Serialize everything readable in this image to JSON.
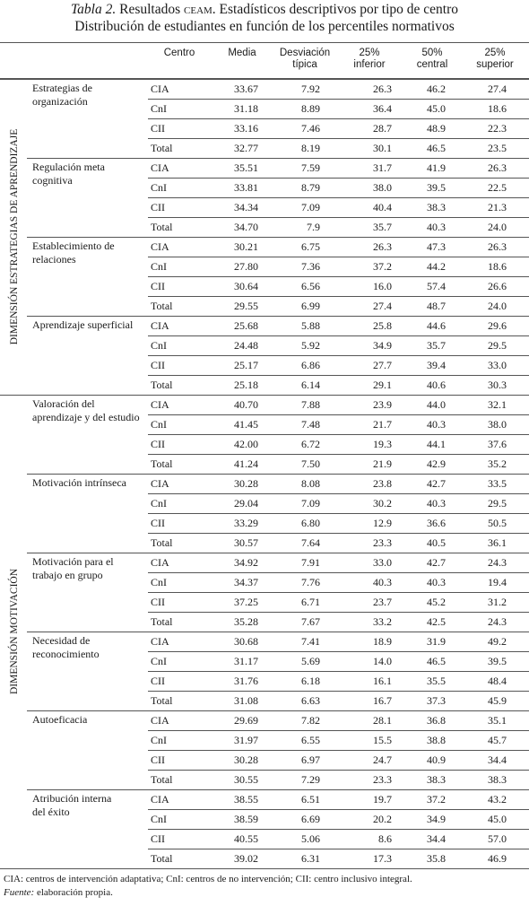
{
  "title": {
    "label": "Tabla 2.",
    "text": "Resultados",
    "acronym": "CEAM",
    "rest": ". Estadísticos descriptivos por tipo de centro",
    "subtitle": "Distribución de estudiantes en función de los percentiles normativos"
  },
  "table": {
    "header": [
      [
        "Centro"
      ],
      [
        "Media"
      ],
      [
        "Desviación",
        "típica"
      ],
      [
        "25%",
        "inferior"
      ],
      [
        "50%",
        "central"
      ],
      [
        "25%",
        "superior"
      ]
    ],
    "dimensions": [
      {
        "label": "DIMENSIÓN ESTRATEGIAS DE APRENDIZAJE",
        "groups": [
          {
            "label": [
              "Estrategias de",
              "organización"
            ],
            "rows": [
              [
                "CIA",
                "33.67",
                "7.92",
                "26.3",
                "46.2",
                "27.4"
              ],
              [
                "CnI",
                "31.18",
                "8.89",
                "36.4",
                "45.0",
                "18.6"
              ],
              [
                "CII",
                "33.16",
                "7.46",
                "28.7",
                "48.9",
                "22.3"
              ],
              [
                "Total",
                "32.77",
                "8.19",
                "30.1",
                "46.5",
                "23.5"
              ]
            ]
          },
          {
            "label": [
              "Regulación meta",
              "cognitiva"
            ],
            "rows": [
              [
                "CIA",
                "35.51",
                "7.59",
                "31.7",
                "41.9",
                "26.3"
              ],
              [
                "CnI",
                "33.81",
                "8.79",
                "38.0",
                "39.5",
                "22.5"
              ],
              [
                "CII",
                "34.34",
                "7.09",
                "40.4",
                "38.3",
                "21.3"
              ],
              [
                "Total",
                "34.70",
                "7.9",
                "35.7",
                "40.3",
                "24.0"
              ]
            ]
          },
          {
            "label": [
              "Establecimiento de",
              "relaciones"
            ],
            "rows": [
              [
                "CIA",
                "30.21",
                "6.75",
                "26.3",
                "47.3",
                "26.3"
              ],
              [
                "CnI",
                "27.80",
                "7.36",
                "37.2",
                "44.2",
                "18.6"
              ],
              [
                "CII",
                "30.64",
                "6.56",
                "16.0",
                "57.4",
                "26.6"
              ],
              [
                "Total",
                "29.55",
                "6.99",
                "27.4",
                "48.7",
                "24.0"
              ]
            ]
          },
          {
            "label": [
              "Aprendizaje superficial"
            ],
            "rows": [
              [
                "CIA",
                "25.68",
                "5.88",
                "25.8",
                "44.6",
                "29.6"
              ],
              [
                "CnI",
                "24.48",
                "5.92",
                "34.9",
                "35.7",
                "29.5"
              ],
              [
                "CII",
                "25.17",
                "6.86",
                "27.7",
                "39.4",
                "33.0"
              ],
              [
                "Total",
                "25.18",
                "6.14",
                "29.1",
                "40.6",
                "30.3"
              ]
            ]
          }
        ]
      },
      {
        "label": "DIMENSIÓN MOTIVACIÓN",
        "groups": [
          {
            "label": [
              "Valoración del",
              "aprendizaje y del estudio"
            ],
            "rows": [
              [
                "CIA",
                "40.70",
                "7.88",
                "23.9",
                "44.0",
                "32.1"
              ],
              [
                "CnI",
                "41.45",
                "7.48",
                "21.7",
                "40.3",
                "38.0"
              ],
              [
                "CII",
                "42.00",
                "6.72",
                "19.3",
                "44.1",
                "37.6"
              ],
              [
                "Total",
                "41.24",
                "7.50",
                "21.9",
                "42.9",
                "35.2"
              ]
            ]
          },
          {
            "label": [
              "Motivación intrínseca"
            ],
            "rows": [
              [
                "CIA",
                "30.28",
                "8.08",
                "23.8",
                "42.7",
                "33.5"
              ],
              [
                "CnI",
                "29.04",
                "7.09",
                "30.2",
                "40.3",
                "29.5"
              ],
              [
                "CII",
                "33.29",
                "6.80",
                "12.9",
                "36.6",
                "50.5"
              ],
              [
                "Total",
                "30.57",
                "7.64",
                "23.3",
                "40.5",
                "36.1"
              ]
            ]
          },
          {
            "label": [
              "Motivación para el",
              "trabajo en grupo"
            ],
            "rows": [
              [
                "CIA",
                "34.92",
                "7.91",
                "33.0",
                "42.7",
                "24.3"
              ],
              [
                "CnI",
                "34.37",
                "7.76",
                "40.3",
                "40.3",
                "19.4"
              ],
              [
                "CII",
                "37.25",
                "6.71",
                "23.7",
                "45.2",
                "31.2"
              ],
              [
                "Total",
                "35.28",
                "7.67",
                "33.2",
                "42.5",
                "24.3"
              ]
            ]
          },
          {
            "label": [
              "Necesidad de",
              "reconocimiento"
            ],
            "rows": [
              [
                "CIA",
                "30.68",
                "7.41",
                "18.9",
                "31.9",
                "49.2"
              ],
              [
                "CnI",
                "31.17",
                "5.69",
                "14.0",
                "46.5",
                "39.5"
              ],
              [
                "CII",
                "31.76",
                "6.18",
                "16.1",
                "35.5",
                "48.4"
              ],
              [
                "Total",
                "31.08",
                "6.63",
                "16.7",
                "37.3",
                "45.9"
              ]
            ]
          },
          {
            "label": [
              "Autoeficacia"
            ],
            "rows": [
              [
                "CIA",
                "29.69",
                "7.82",
                "28.1",
                "36.8",
                "35.1"
              ],
              [
                "CnI",
                "31.97",
                "6.55",
                "15.5",
                "38.8",
                "45.7"
              ],
              [
                "CII",
                "30.28",
                "6.97",
                "24.7",
                "40.9",
                "34.4"
              ],
              [
                "Total",
                "30.55",
                "7.29",
                "23.3",
                "38.3",
                "38.3"
              ]
            ]
          },
          {
            "label": [
              "Atribución interna",
              "del éxito"
            ],
            "rows": [
              [
                "CIA",
                "38.55",
                "6.51",
                "19.7",
                "37.2",
                "43.2"
              ],
              [
                "CnI",
                "38.59",
                "6.69",
                "20.2",
                "34.9",
                "45.0"
              ],
              [
                "CII",
                "40.55",
                "5.06",
                "8.6",
                "34.4",
                "57.0"
              ],
              [
                "Total",
                "39.02",
                "6.31",
                "17.3",
                "35.8",
                "46.9"
              ]
            ]
          }
        ]
      }
    ]
  },
  "notes": {
    "abbreviations": "CIA: centros de intervención adaptativa; CnI: centros de no intervención; CII: centro inclusivo integral.",
    "source_label": "Fuente:",
    "source_text": "elaboración propia."
  }
}
